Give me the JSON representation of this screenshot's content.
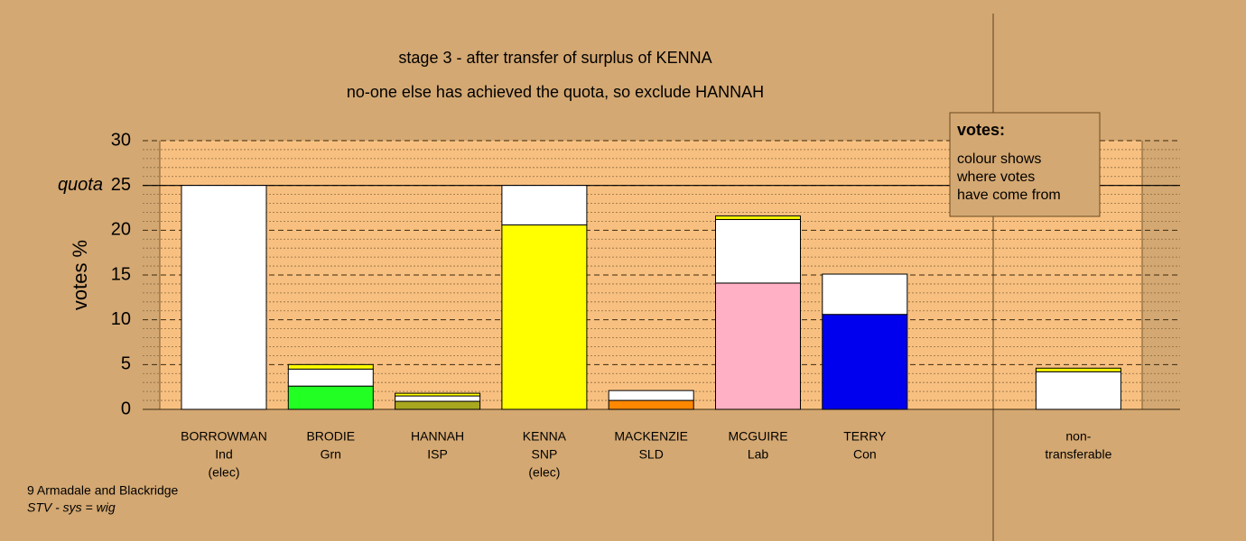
{
  "chart_data": {
    "type": "stacked-bar",
    "title": "stage 3 - after transfer of surplus of KENNA",
    "subtitle": "no-one else has achieved the quota, so exclude HANNAH",
    "y_label": "votes %",
    "ylim": [
      0,
      30
    ],
    "yticks": [
      0,
      5,
      10,
      15,
      20,
      25,
      30
    ],
    "yminorticks": [
      1,
      2,
      3,
      4,
      6,
      7,
      8,
      9,
      11,
      12,
      13,
      14,
      16,
      17,
      18,
      19,
      21,
      22,
      23,
      24,
      26,
      27,
      28,
      29
    ],
    "quota": {
      "value": 25,
      "label": "quota"
    },
    "categories": [
      [
        "BORROWMAN",
        "Ind",
        "(elec)"
      ],
      [
        "BRODIE",
        "Grn"
      ],
      [
        "HANNAH",
        "ISP"
      ],
      [
        "KENNA",
        "SNP",
        "(elec)"
      ],
      [
        "MACKENZIE",
        "SLD"
      ],
      [
        "MCGUIRE",
        "Lab"
      ],
      [
        "TERRY",
        "Con"
      ],
      null,
      [
        "non-",
        "transferable"
      ]
    ],
    "stacks": [
      [
        {
          "color": "#ffffff",
          "value": 25
        }
      ],
      [
        {
          "color": "#22ff22",
          "value": 2.6
        },
        {
          "color": "#ffffff",
          "value": 1.9
        },
        {
          "color": "#ffff00",
          "value": 0.5
        }
      ],
      [
        {
          "color": "#a8a820",
          "value": 0.9
        },
        {
          "color": "#ffffff",
          "value": 0.6
        },
        {
          "color": "#ffff00",
          "value": 0.3
        }
      ],
      [
        {
          "color": "#ffff00",
          "value": 20.6
        },
        {
          "color": "#ffffff",
          "value": 4.4
        }
      ],
      [
        {
          "color": "#ff8800",
          "value": 1.0
        },
        {
          "color": "#ffffff",
          "value": 1.1
        }
      ],
      [
        {
          "color": "#ffb0c4",
          "value": 14.1
        },
        {
          "color": "#ffffff",
          "value": 7.1
        },
        {
          "color": "#ffff00",
          "value": 0.4
        }
      ],
      [
        {
          "color": "#0000ee",
          "value": 10.6
        },
        {
          "color": "#ffffff",
          "value": 4.5
        }
      ],
      [],
      [
        {
          "color": "#ffffff",
          "value": 4.2
        },
        {
          "color": "#ffff00",
          "value": 0.4
        }
      ]
    ],
    "legend": {
      "title": "votes:",
      "lines": [
        "colour shows",
        "where votes",
        "have come from"
      ]
    },
    "footer": [
      "9 Armadale and Blackridge",
      "STV - sys = wig"
    ]
  }
}
